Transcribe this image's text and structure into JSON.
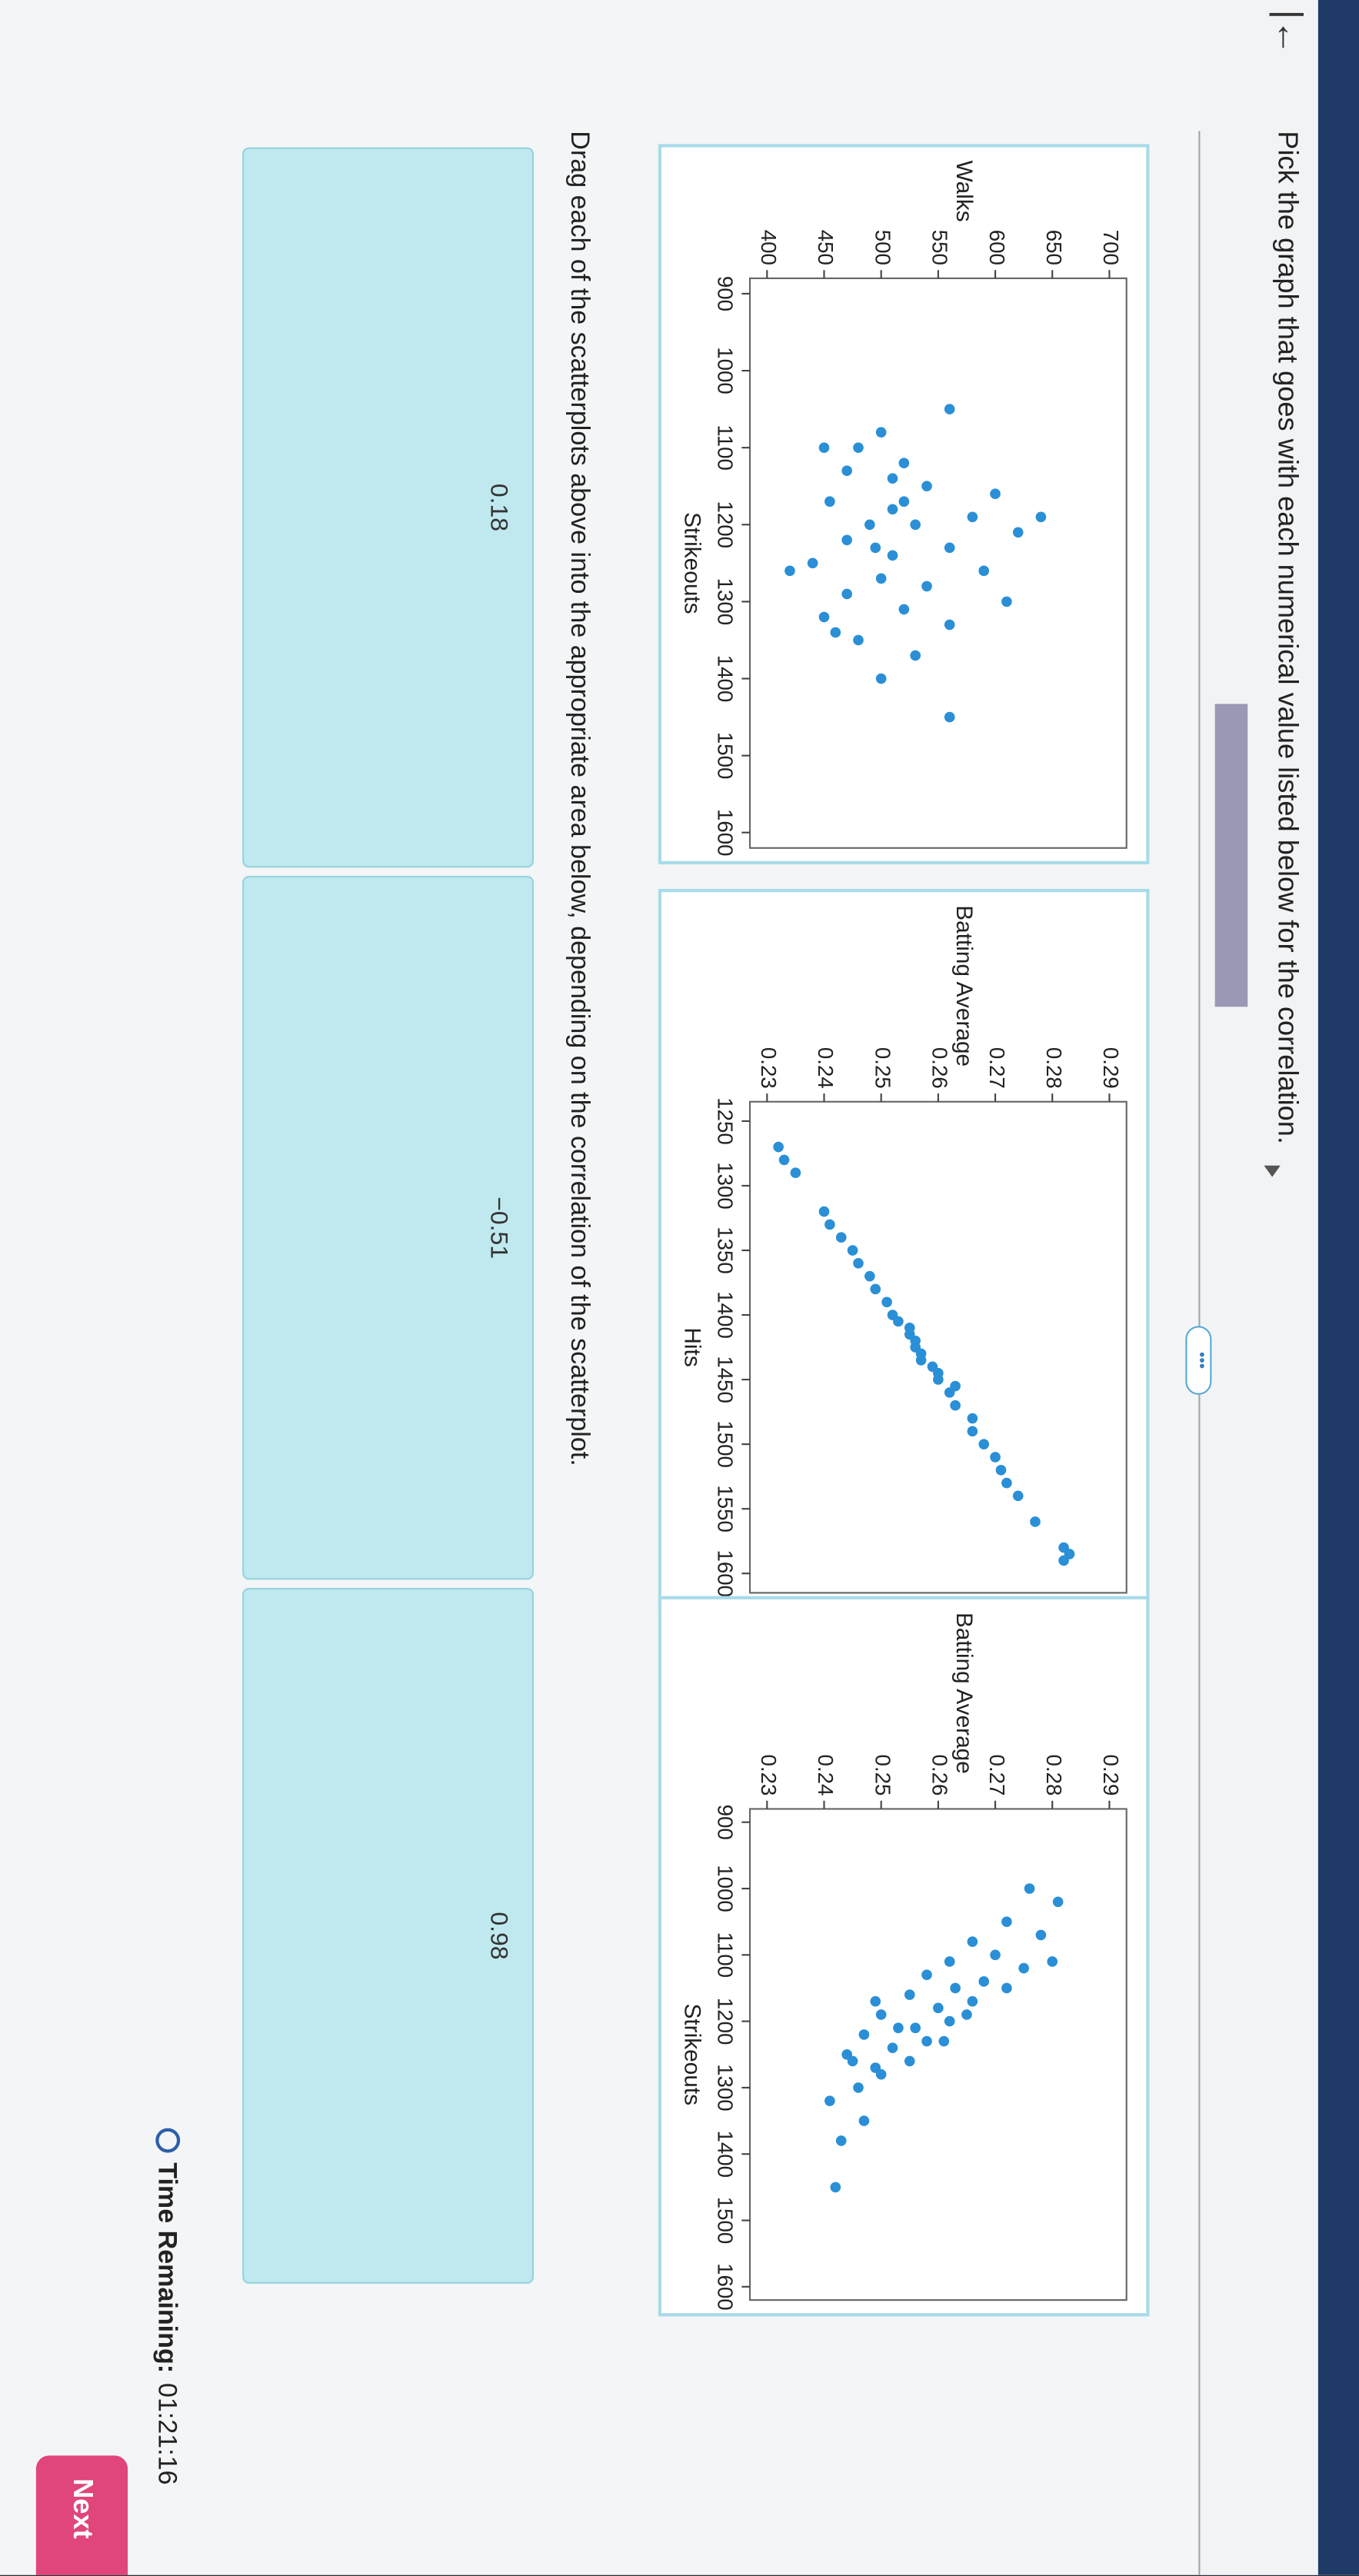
{
  "instruction": "Pick the graph that goes with each numerical value listed below for the correlation.",
  "chart_data": [
    {
      "type": "scatter",
      "xlabel": "Strikeouts",
      "ylabel": "Walks",
      "color": "#2a8fd6",
      "xlim": [
        880,
        1620
      ],
      "ylim": [
        385,
        715
      ],
      "xticks": [
        900,
        1000,
        1100,
        1200,
        1300,
        1400,
        1500,
        1600
      ],
      "yticks": [
        400,
        450,
        500,
        550,
        600,
        650,
        700
      ],
      "x": [
        1050,
        1080,
        1100,
        1120,
        1130,
        1150,
        1160,
        1170,
        1180,
        1190,
        1200,
        1200,
        1210,
        1220,
        1230,
        1240,
        1250,
        1260,
        1270,
        1280,
        1290,
        1300,
        1310,
        1320,
        1330,
        1350,
        1370,
        1400,
        1450,
        1260,
        1140,
        1190,
        1230,
        1340,
        1100,
        1170
      ],
      "values": [
        560,
        500,
        480,
        520,
        470,
        540,
        600,
        455,
        510,
        580,
        490,
        530,
        620,
        470,
        560,
        510,
        440,
        590,
        500,
        540,
        470,
        610,
        520,
        450,
        560,
        480,
        530,
        500,
        560,
        420,
        510,
        640,
        495,
        460,
        450,
        520
      ]
    },
    {
      "type": "scatter",
      "xlabel": "Hits",
      "ylabel": "Batting Average",
      "color": "#2a8fd6",
      "xlim": [
        1235,
        1615
      ],
      "ylim": [
        0.227,
        0.293
      ],
      "xticks": [
        1250,
        1300,
        1350,
        1400,
        1450,
        1500,
        1550,
        1600
      ],
      "yticks": [
        0.23,
        0.24,
        0.25,
        0.26,
        0.27,
        0.28,
        0.29
      ],
      "x": [
        1270,
        1280,
        1290,
        1320,
        1330,
        1340,
        1350,
        1360,
        1370,
        1380,
        1390,
        1400,
        1410,
        1415,
        1420,
        1425,
        1430,
        1440,
        1445,
        1450,
        1460,
        1470,
        1480,
        1490,
        1500,
        1510,
        1520,
        1530,
        1540,
        1560,
        1580,
        1585,
        1590,
        1455,
        1405,
        1435
      ],
      "values": [
        0.232,
        0.233,
        0.235,
        0.24,
        0.241,
        0.243,
        0.245,
        0.246,
        0.248,
        0.249,
        0.251,
        0.252,
        0.255,
        0.255,
        0.256,
        0.256,
        0.257,
        0.259,
        0.26,
        0.26,
        0.262,
        0.263,
        0.266,
        0.266,
        0.268,
        0.27,
        0.271,
        0.272,
        0.274,
        0.277,
        0.282,
        0.283,
        0.282,
        0.263,
        0.253,
        0.257
      ]
    },
    {
      "type": "scatter",
      "xlabel": "Strikeouts",
      "ylabel": "Batting Average",
      "color": "#2a8fd6",
      "xlim": [
        880,
        1620
      ],
      "ylim": [
        0.227,
        0.293
      ],
      "xticks": [
        900,
        1000,
        1100,
        1200,
        1300,
        1400,
        1500,
        1600
      ],
      "yticks": [
        0.23,
        0.24,
        0.25,
        0.26,
        0.27,
        0.28,
        0.29
      ],
      "x": [
        1000,
        1020,
        1050,
        1070,
        1080,
        1100,
        1110,
        1120,
        1130,
        1140,
        1150,
        1160,
        1170,
        1180,
        1190,
        1200,
        1210,
        1220,
        1230,
        1240,
        1250,
        1260,
        1270,
        1280,
        1300,
        1320,
        1350,
        1380,
        1450,
        1110,
        1150,
        1190,
        1230,
        1170,
        1210,
        1260
      ],
      "values": [
        0.276,
        0.281,
        0.272,
        0.278,
        0.266,
        0.27,
        0.262,
        0.275,
        0.258,
        0.268,
        0.263,
        0.255,
        0.266,
        0.26,
        0.25,
        0.262,
        0.256,
        0.247,
        0.258,
        0.252,
        0.244,
        0.255,
        0.249,
        0.25,
        0.246,
        0.241,
        0.247,
        0.243,
        0.242,
        0.28,
        0.272,
        0.265,
        0.261,
        0.249,
        0.253,
        0.245
      ]
    }
  ],
  "drag_instruction": "Drag each of the scatterplots above into the appropriate area below, depending on the correlation of the scatterplot.",
  "answers": [
    "0.18",
    "−0.51",
    "0.98"
  ],
  "timer": {
    "label": "Time Remaining:",
    "value": "01:21:16"
  },
  "next_button": "Next"
}
